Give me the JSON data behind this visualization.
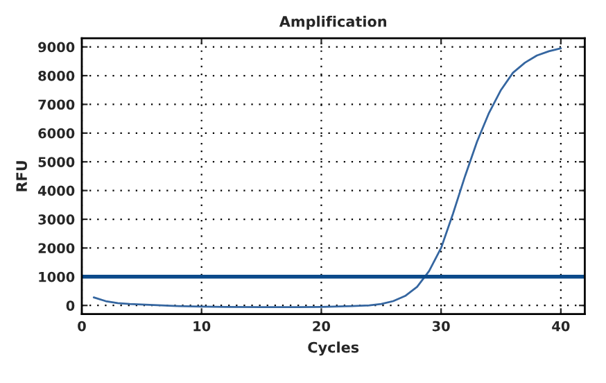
{
  "chart_data": {
    "type": "line",
    "title": "Amplification",
    "xlabel": "Cycles",
    "ylabel": "RFU",
    "x": [
      1,
      2,
      3,
      4,
      5,
      6,
      8,
      10,
      12,
      15,
      18,
      20,
      22,
      24,
      25,
      26,
      27,
      28,
      29,
      30,
      31,
      32,
      33,
      34,
      35,
      36,
      37,
      38,
      39,
      40
    ],
    "series": [
      {
        "color": "#3566a0",
        "values": [
          280,
          150,
          80,
          50,
          30,
          15,
          -20,
          -40,
          -50,
          -60,
          -60,
          -50,
          -30,
          0,
          50,
          150,
          330,
          650,
          1200,
          2000,
          3200,
          4500,
          5700,
          6700,
          7500,
          8100,
          8450,
          8700,
          8850,
          8950
        ]
      }
    ],
    "xlim": [
      0,
      42
    ],
    "ylim": [
      -300,
      9300
    ],
    "xticks": [
      0,
      10,
      20,
      30,
      40
    ],
    "yticks": [
      0,
      1000,
      2000,
      3000,
      4000,
      5000,
      6000,
      7000,
      8000,
      9000
    ],
    "ref_lines": [
      {
        "axis": "y",
        "value": 1000,
        "color": "#0b4a8a"
      }
    ],
    "grid": true,
    "legend": false
  }
}
